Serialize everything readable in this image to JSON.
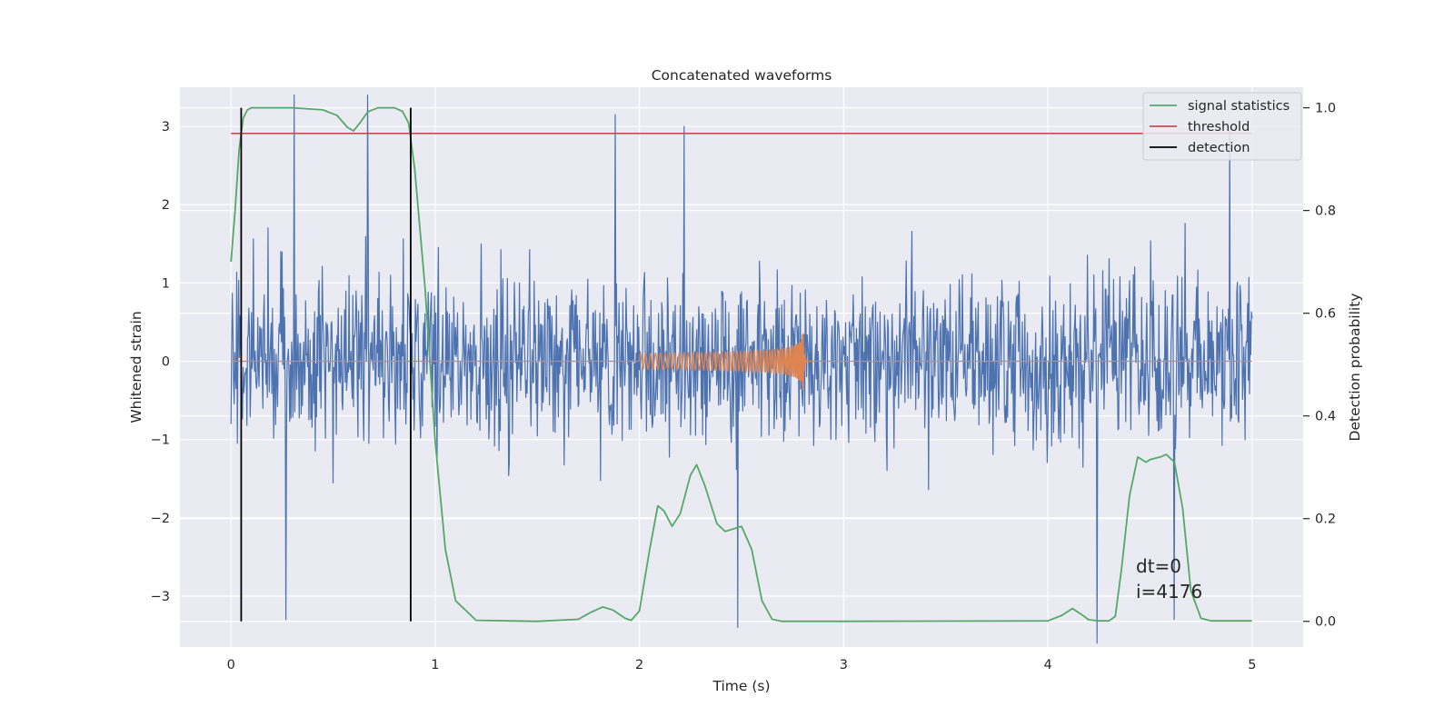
{
  "chart_data": {
    "type": "line",
    "title": "Concatenated waveforms",
    "xlabel": "Time (s)",
    "ylabel_left": "Whitened strain",
    "ylabel_right": "Detection probability",
    "xlim": [
      -0.25,
      5.25
    ],
    "ylim_left": [
      -3.65,
      3.5
    ],
    "ylim_right": [
      -0.05,
      1.04
    ],
    "x_ticks": [
      0,
      1,
      2,
      3,
      4,
      5
    ],
    "x_tick_labels": [
      "0",
      "1",
      "2",
      "3",
      "4",
      "5"
    ],
    "y_left_ticks": [
      -3,
      -2,
      -1,
      0,
      1,
      2,
      3
    ],
    "y_left_tick_labels": [
      "−3",
      "−2",
      "−1",
      "0",
      "1",
      "2",
      "3"
    ],
    "y_right_ticks": [
      0.0,
      0.2,
      0.4,
      0.6,
      0.8,
      1.0
    ],
    "y_right_tick_labels": [
      "0.0",
      "0.2",
      "0.4",
      "0.6",
      "0.8",
      "1.0"
    ],
    "grid": true,
    "legend_position": "top-right",
    "annotation": [
      "dt=0",
      "i=4176"
    ],
    "noise": {
      "color": "#4c72b0",
      "axis": "left",
      "x_range": [
        0,
        5
      ],
      "typical_amplitude": 1.6,
      "peak_values": [
        {
          "x": 0.31,
          "y": 3.4
        },
        {
          "x": 0.67,
          "y": 3.4
        },
        {
          "x": 1.88,
          "y": 3.15
        },
        {
          "x": 2.22,
          "y": 3.0
        },
        {
          "x": 4.89,
          "y": 3.0
        },
        {
          "x": 0.27,
          "y": -3.3
        },
        {
          "x": 2.48,
          "y": -3.4
        },
        {
          "x": 4.24,
          "y": -3.6
        },
        {
          "x": 4.62,
          "y": -3.3
        }
      ]
    },
    "chirp": {
      "color": "#dd8452",
      "axis": "left",
      "start": 2.0,
      "merger": 2.8,
      "start_amplitude": 0.1,
      "peak_amplitude": 0.5
    },
    "series": [
      {
        "name": "signal statistics",
        "color": "#55a868",
        "axis": "right",
        "x": [
          0.0,
          0.02,
          0.04,
          0.06,
          0.08,
          0.1,
          0.15,
          0.3,
          0.45,
          0.52,
          0.57,
          0.6,
          0.63,
          0.67,
          0.72,
          0.8,
          0.84,
          0.87,
          0.9,
          0.95,
          1.0,
          1.05,
          1.1,
          1.2,
          1.5,
          1.7,
          1.76,
          1.82,
          1.87,
          1.93,
          1.96,
          2.0,
          2.05,
          2.09,
          2.12,
          2.16,
          2.2,
          2.25,
          2.28,
          2.32,
          2.38,
          2.42,
          2.46,
          2.5,
          2.55,
          2.6,
          2.65,
          2.7,
          3.0,
          4.0,
          4.07,
          4.12,
          4.17,
          4.2,
          4.25,
          4.3,
          4.33,
          4.36,
          4.4,
          4.44,
          4.48,
          4.5,
          4.55,
          4.58,
          4.62,
          4.66,
          4.7,
          4.75,
          4.8,
          5.0
        ],
        "y": [
          0.7,
          0.8,
          0.92,
          0.98,
          0.996,
          1.0,
          1.0,
          1.0,
          0.996,
          0.985,
          0.962,
          0.955,
          0.97,
          0.992,
          1.0,
          1.0,
          0.993,
          0.97,
          0.88,
          0.65,
          0.35,
          0.14,
          0.04,
          0.002,
          0.0,
          0.004,
          0.017,
          0.028,
          0.022,
          0.006,
          0.002,
          0.02,
          0.14,
          0.225,
          0.215,
          0.185,
          0.21,
          0.285,
          0.305,
          0.265,
          0.19,
          0.175,
          0.18,
          0.185,
          0.14,
          0.04,
          0.004,
          0.0,
          0.0,
          0.001,
          0.012,
          0.025,
          0.012,
          0.003,
          0.001,
          0.001,
          0.01,
          0.1,
          0.245,
          0.32,
          0.31,
          0.315,
          0.32,
          0.325,
          0.31,
          0.22,
          0.06,
          0.006,
          0.001,
          0.001
        ]
      },
      {
        "name": "threshold",
        "color": "#c44e52",
        "axis": "right",
        "x": [
          0,
          5
        ],
        "y": [
          0.95,
          0.95
        ]
      },
      {
        "name": "detection",
        "color": "#000000",
        "axis": "right",
        "x": [
          0.05,
          0.88
        ],
        "y": [
          0.0,
          1.0
        ]
      }
    ]
  }
}
